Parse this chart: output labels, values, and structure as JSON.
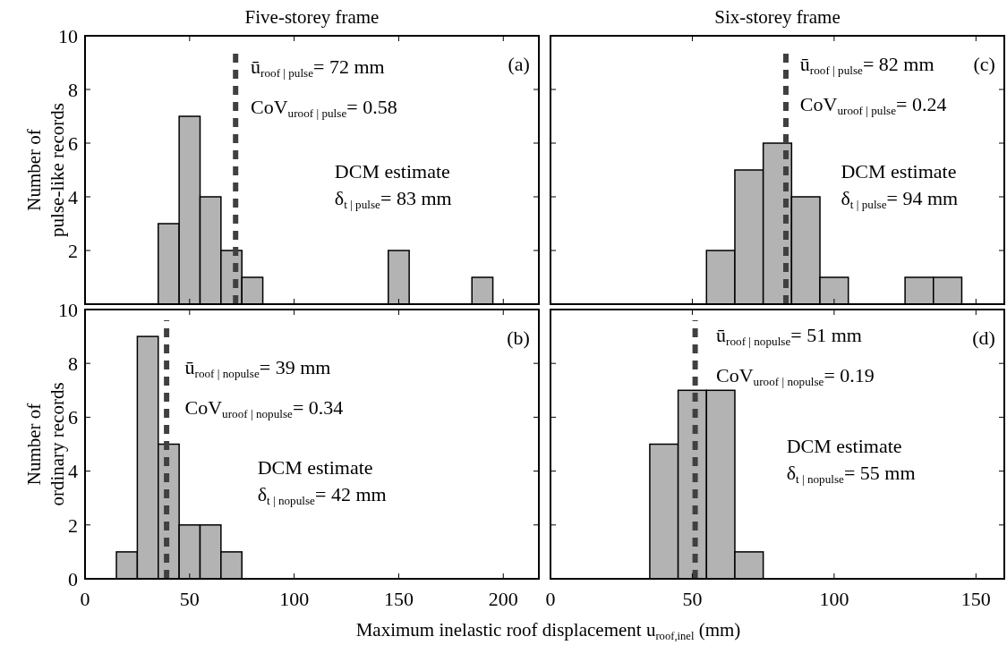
{
  "chart_data": [
    {
      "type": "histogram",
      "title": "Five-storey frame",
      "ylabel": "Number of\npulse-like records",
      "bins": [
        35,
        45,
        55,
        65,
        75,
        85,
        95,
        105,
        115,
        125,
        135,
        145,
        155,
        165,
        175,
        185,
        195
      ],
      "values": [
        3,
        7,
        4,
        2,
        1,
        0,
        0,
        0,
        0,
        0,
        0,
        2,
        0,
        0,
        0,
        1
      ],
      "color": "#b3b3b3",
      "xlim": [
        0,
        217
      ],
      "xticks": [
        0,
        50,
        100,
        150,
        200
      ],
      "ylim": [
        0,
        10
      ],
      "yticks": [
        {
          "value": 0,
          "label": null
        },
        2,
        4,
        6,
        8,
        10
      ],
      "tick_labels": "y",
      "ref_lines": [
        {
          "axis": "x",
          "value": 72,
          "color": "#404040",
          "line_style": "dashed"
        }
      ],
      "annotations": [
        "ū$_{roof | pulse}$= 72 mm",
        "CoV$_{uroof | pulse}$= 0.58",
        "DCM estimate",
        "δ$_{t | pulse}$= 83 mm",
        "(a)"
      ]
    },
    {
      "type": "histogram",
      "title": "Six-storey frame",
      "bins": [
        55,
        65,
        75,
        85,
        95,
        105,
        115,
        125,
        135,
        145
      ],
      "values": [
        2,
        5,
        6,
        4,
        1,
        0,
        0,
        1,
        1
      ],
      "color": "#b3b3b3",
      "xlim": [
        0,
        160
      ],
      "xticks": [
        0,
        50,
        100,
        150
      ],
      "ylim": [
        0,
        10
      ],
      "yticks": [
        0,
        2,
        4,
        6,
        8,
        10
      ],
      "tick_labels": false,
      "ref_lines": [
        {
          "axis": "x",
          "value": 83,
          "color": "#404040",
          "line_style": "dashed"
        }
      ],
      "annotations": [
        "ū$_{roof | pulse}$= 82 mm",
        "CoV$_{uroof | pulse}$= 0.24",
        "DCM estimate",
        "δ$_{t | pulse}$= 94 mm",
        "(c)"
      ]
    },
    {
      "type": "histogram",
      "ylabel": "Number of\nordinary records",
      "xlabel": "Maximum inelastic roof displacement u$_{roof,inel}$ (mm)",
      "bins": [
        15,
        25,
        35,
        45,
        55,
        65,
        75
      ],
      "values": [
        1,
        9,
        5,
        2,
        2,
        1
      ],
      "color": "#b3b3b3",
      "xlim": [
        0,
        217
      ],
      "xticks": [
        0,
        50,
        100,
        150,
        200
      ],
      "ylim": [
        0,
        10
      ],
      "yticks": [
        0,
        2,
        4,
        6,
        8,
        10
      ],
      "ref_lines": [
        {
          "axis": "x",
          "value": 39,
          "color": "#404040",
          "line_style": "dashed"
        }
      ],
      "annotations": [
        "ū$_{roof | nopulse}$= 39 mm",
        "CoV$_{uroof | nopulse}$= 0.34",
        "DCM estimate",
        "δ$_{t | nopulse}$= 42 mm",
        "(b)"
      ]
    },
    {
      "type": "histogram",
      "bins": [
        35,
        45,
        55,
        65,
        75
      ],
      "values": [
        5,
        7,
        7,
        1
      ],
      "color": "#b3b3b3",
      "xlim": [
        0,
        160
      ],
      "xticks": [
        0,
        50,
        100,
        150
      ],
      "ylim": [
        0,
        10
      ],
      "yticks": [
        0,
        2,
        4,
        6,
        8,
        10
      ],
      "tick_labels": "x",
      "ref_lines": [
        {
          "axis": "x",
          "value": 51,
          "color": "#404040",
          "line_style": "dashed"
        }
      ],
      "annotations": [
        "ū$_{roof | nopulse}$= 51 mm",
        "CoV$_{uroof | nopulse}$= 0.19",
        "DCM estimate",
        "δ$_{t | nopulse}$= 55 mm",
        "(d)"
      ]
    }
  ]
}
